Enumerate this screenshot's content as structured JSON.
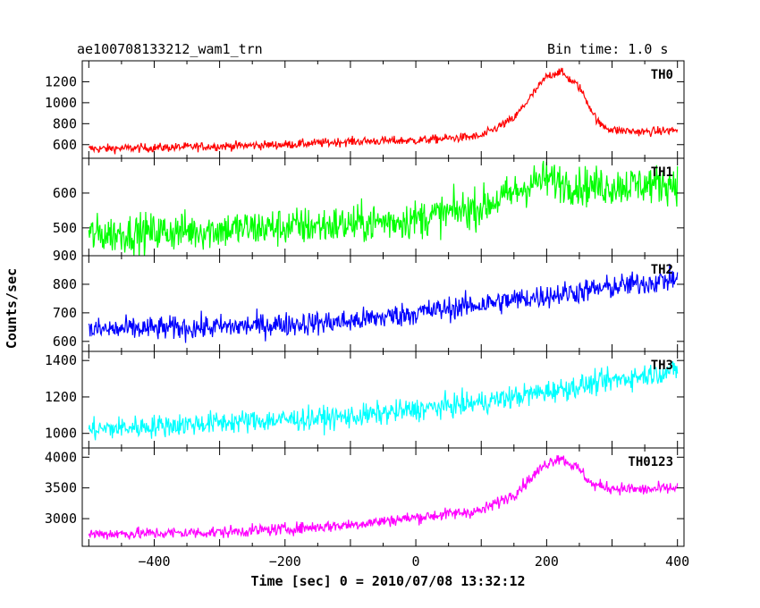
{
  "header": {
    "title": "ae100708133212_wam1_trn",
    "bin_time": "Bin time: 1.0 s"
  },
  "chart_data": {
    "type": "line",
    "ylabel": "Counts/sec",
    "xlabel": "Time [sec] 0 = 2010/07/08 13:32:12",
    "xlim": [
      -510,
      410
    ],
    "x_ticks": [
      -400,
      -200,
      0,
      200,
      400
    ],
    "x_tick_labels": [
      "−400",
      "−200",
      "0",
      "200",
      "400"
    ],
    "panels": [
      {
        "name": "TH0",
        "color": "#ff0000",
        "ylim": [
          470,
          1400
        ],
        "y_ticks": [
          600,
          800,
          1000,
          1200
        ],
        "noise": 30,
        "x": [
          -500,
          -400,
          -300,
          -200,
          -100,
          0,
          100,
          150,
          200,
          220,
          250,
          280,
          300,
          350,
          400
        ],
        "y": [
          560,
          570,
          585,
          600,
          630,
          640,
          680,
          850,
          1250,
          1300,
          1150,
          800,
          740,
          720,
          740
        ]
      },
      {
        "name": "TH1",
        "color": "#00ff00",
        "ylim": [
          420,
          700
        ],
        "y_ticks": [
          500,
          600
        ],
        "noise": 40,
        "x": [
          -500,
          -300,
          -100,
          0,
          100,
          150,
          180,
          200,
          250,
          300,
          400
        ],
        "y": [
          480,
          495,
          510,
          525,
          560,
          600,
          630,
          640,
          620,
          620,
          630
        ]
      },
      {
        "name": "TH2",
        "color": "#0000ff",
        "ylim": [
          565,
          900
        ],
        "y_ticks": [
          600,
          700,
          800,
          900
        ],
        "noise": 30,
        "x": [
          -500,
          -300,
          -100,
          0,
          100,
          200,
          300,
          400
        ],
        "y": [
          640,
          650,
          670,
          700,
          730,
          760,
          790,
          820
        ]
      },
      {
        "name": "TH3",
        "color": "#00ffff",
        "ylim": [
          920,
          1450
        ],
        "y_ticks": [
          1000,
          1200,
          1400
        ],
        "noise": 45,
        "x": [
          -500,
          -300,
          -100,
          0,
          100,
          200,
          300,
          400
        ],
        "y": [
          1020,
          1060,
          1090,
          1130,
          1170,
          1230,
          1290,
          1350
        ]
      },
      {
        "name": "TH0123",
        "color": "#ff00ff",
        "ylim": [
          2550,
          4150
        ],
        "y_ticks": [
          3000,
          3500,
          4000
        ],
        "noise": 70,
        "x": [
          -500,
          -400,
          -300,
          -200,
          -100,
          0,
          100,
          150,
          200,
          220,
          250,
          270,
          300,
          350,
          400
        ],
        "y": [
          2750,
          2760,
          2780,
          2830,
          2900,
          3020,
          3130,
          3400,
          3900,
          4000,
          3800,
          3550,
          3500,
          3470,
          3500
        ]
      }
    ]
  }
}
